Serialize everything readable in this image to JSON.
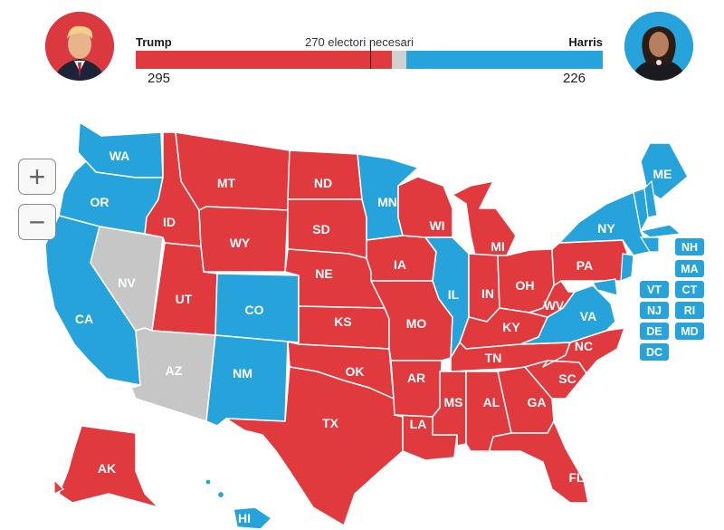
{
  "header": {
    "left_candidate": {
      "name": "Trump",
      "votes": 295
    },
    "right_candidate": {
      "name": "Harris",
      "votes": 226
    },
    "threshold_label": "270 electori necesari",
    "threshold": 270,
    "total": 538
  },
  "colors": {
    "red": "#e0393e",
    "blue": "#27a3dc",
    "gray": "#c6c6c6",
    "undecided": "#d0d0d0"
  },
  "controls": {
    "zoom_in": "+",
    "zoom_out": "−"
  },
  "states": [
    {
      "code": "WA",
      "winner": "blue"
    },
    {
      "code": "OR",
      "winner": "blue"
    },
    {
      "code": "CA",
      "winner": "blue"
    },
    {
      "code": "NV",
      "winner": "gray"
    },
    {
      "code": "ID",
      "winner": "red"
    },
    {
      "code": "MT",
      "winner": "red"
    },
    {
      "code": "WY",
      "winner": "red"
    },
    {
      "code": "UT",
      "winner": "red"
    },
    {
      "code": "AZ",
      "winner": "gray"
    },
    {
      "code": "CO",
      "winner": "blue"
    },
    {
      "code": "NM",
      "winner": "blue"
    },
    {
      "code": "ND",
      "winner": "red"
    },
    {
      "code": "SD",
      "winner": "red"
    },
    {
      "code": "NE",
      "winner": "red"
    },
    {
      "code": "KS",
      "winner": "red"
    },
    {
      "code": "OK",
      "winner": "red"
    },
    {
      "code": "TX",
      "winner": "red"
    },
    {
      "code": "MN",
      "winner": "blue"
    },
    {
      "code": "IA",
      "winner": "red"
    },
    {
      "code": "MO",
      "winner": "red"
    },
    {
      "code": "AR",
      "winner": "red"
    },
    {
      "code": "LA",
      "winner": "red"
    },
    {
      "code": "WI",
      "winner": "red"
    },
    {
      "code": "IL",
      "winner": "blue"
    },
    {
      "code": "MI",
      "winner": "red"
    },
    {
      "code": "IN",
      "winner": "red"
    },
    {
      "code": "OH",
      "winner": "red"
    },
    {
      "code": "KY",
      "winner": "red"
    },
    {
      "code": "TN",
      "winner": "red"
    },
    {
      "code": "MS",
      "winner": "red"
    },
    {
      "code": "AL",
      "winner": "red"
    },
    {
      "code": "GA",
      "winner": "red"
    },
    {
      "code": "FL",
      "winner": "red"
    },
    {
      "code": "SC",
      "winner": "red"
    },
    {
      "code": "NC",
      "winner": "red"
    },
    {
      "code": "VA",
      "winner": "blue"
    },
    {
      "code": "WV",
      "winner": "red"
    },
    {
      "code": "PA",
      "winner": "red"
    },
    {
      "code": "NY",
      "winner": "blue"
    },
    {
      "code": "ME",
      "winner": "blue"
    },
    {
      "code": "AK",
      "winner": "red"
    },
    {
      "code": "HI",
      "winner": "blue"
    }
  ],
  "small_states": [
    {
      "code": "NH",
      "winner": "blue"
    },
    {
      "code": "MA",
      "winner": "blue"
    },
    {
      "code": "VT",
      "winner": "blue"
    },
    {
      "code": "CT",
      "winner": "blue"
    },
    {
      "code": "NJ",
      "winner": "blue"
    },
    {
      "code": "RI",
      "winner": "blue"
    },
    {
      "code": "DE",
      "winner": "blue"
    },
    {
      "code": "MD",
      "winner": "blue"
    },
    {
      "code": "DC",
      "winner": "blue"
    }
  ]
}
